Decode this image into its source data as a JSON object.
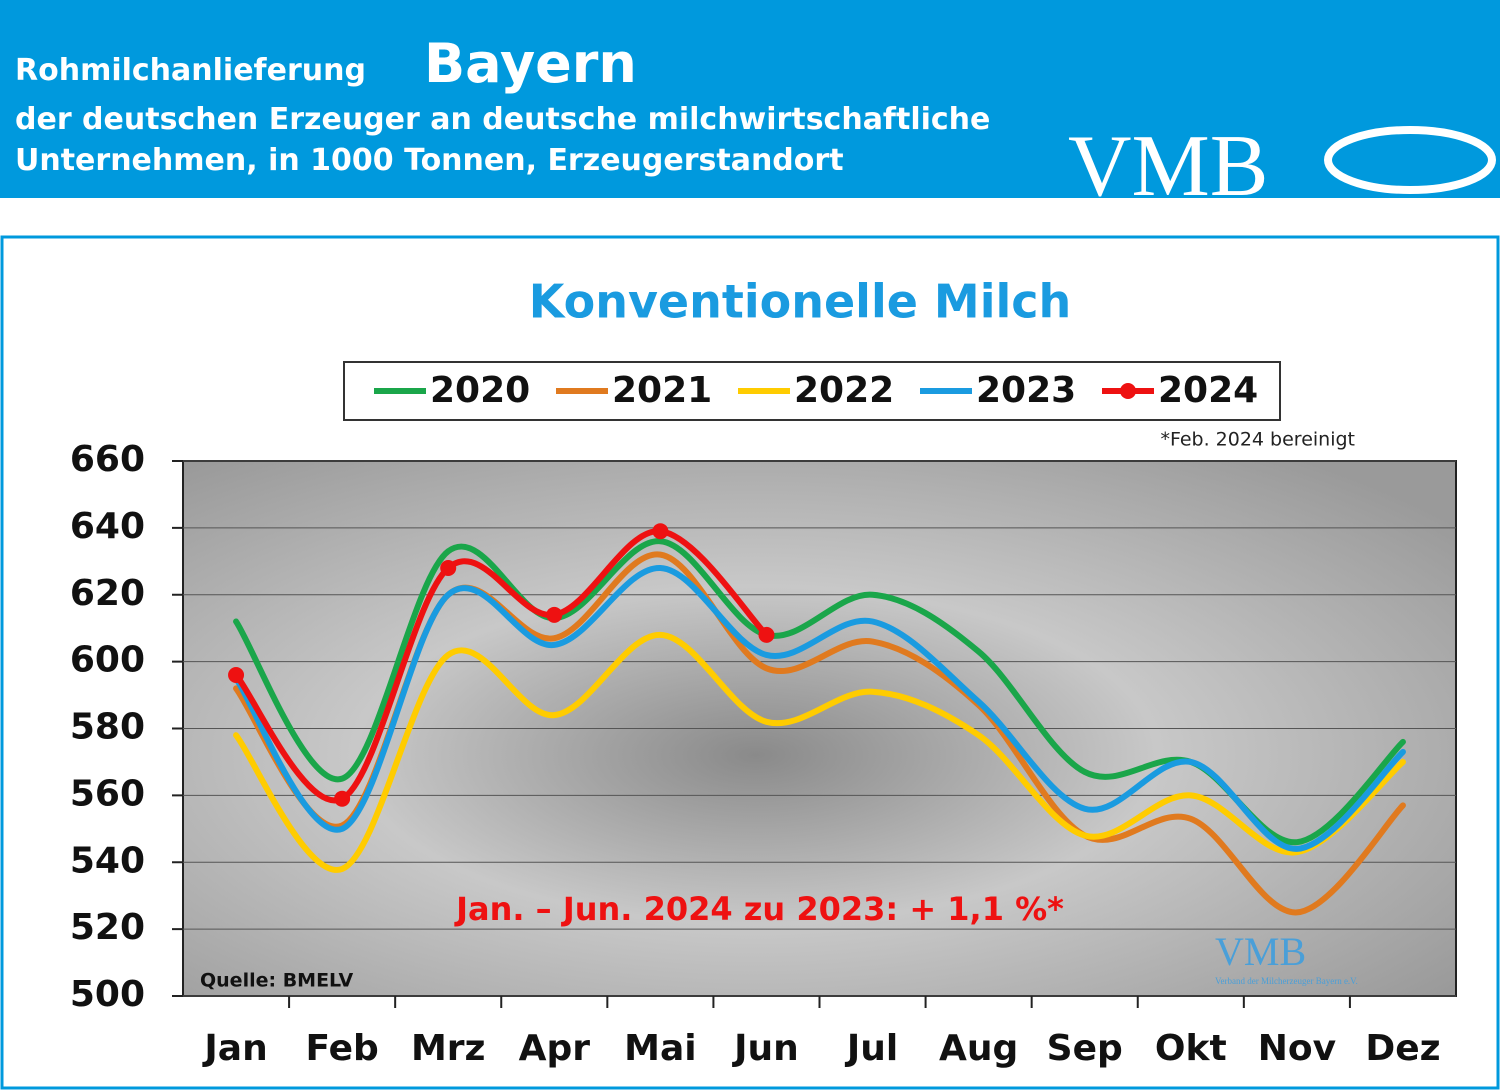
{
  "header": {
    "title_small": "Rohmilchanlieferung",
    "title_big": "Bayern",
    "line2": "der deutschen Erzeuger an deutsche milchwirtschaftliche",
    "line3": "Unternehmen, in 1000 Tonnen, Erzeugerstandort",
    "logo": "VMB"
  },
  "chart_data": {
    "type": "line",
    "title": "Konventionelle Milch",
    "footnote": "*Feb. 2024 bereinigt",
    "annotation": "Jan. – Jun. 2024 zu 2023: + 1,1 %*",
    "source": "Quelle: BMELV",
    "watermark": "VMB",
    "watermark_sub": "Verband der Milcherzeuger Bayern e.V.",
    "categories": [
      "Jan",
      "Feb",
      "Mrz",
      "Apr",
      "Mai",
      "Jun",
      "Jul",
      "Aug",
      "Sep",
      "Okt",
      "Nov",
      "Dez"
    ],
    "ylim": [
      500,
      660
    ],
    "yticks": [
      500,
      520,
      540,
      560,
      580,
      600,
      620,
      640,
      660
    ],
    "grid": true,
    "series": [
      {
        "name": "2020",
        "color": "#1aa64a",
        "values": [
          612,
          565,
          633,
          613,
          636,
          608,
          620,
          603,
          567,
          570,
          546,
          576
        ]
      },
      {
        "name": "2021",
        "color": "#e07a1f",
        "values": [
          592,
          551,
          620,
          607,
          632,
          598,
          606,
          587,
          548,
          553,
          525,
          557
        ]
      },
      {
        "name": "2022",
        "color": "#ffcc00",
        "values": [
          578,
          538,
          602,
          584,
          608,
          582,
          591,
          578,
          548,
          560,
          543,
          570
        ]
      },
      {
        "name": "2023",
        "color": "#1a9be0",
        "values": [
          595,
          550,
          620,
          605,
          628,
          602,
          612,
          588,
          556,
          570,
          544,
          573
        ]
      },
      {
        "name": "2024",
        "color": "#ee1111",
        "markers": true,
        "values": [
          596,
          559,
          628,
          614,
          639,
          608,
          null,
          null,
          null,
          null,
          null,
          null
        ]
      }
    ]
  }
}
